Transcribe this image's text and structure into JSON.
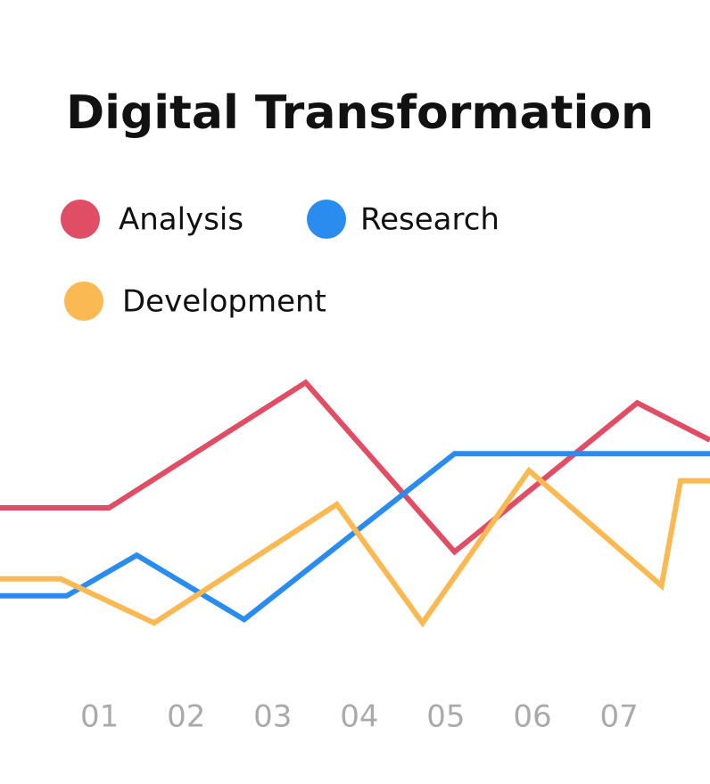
{
  "chart_data": {
    "type": "line",
    "title": "Digital Transformation",
    "xlim": [
      -0.15,
      8.05
    ],
    "ylim": [
      0,
      100
    ],
    "xticks": [
      {
        "value": 1,
        "label": "01"
      },
      {
        "value": 2,
        "label": "02"
      },
      {
        "value": 3,
        "label": "03"
      },
      {
        "value": 4,
        "label": "04"
      },
      {
        "value": 5,
        "label": "05"
      },
      {
        "value": 6,
        "label": "06"
      },
      {
        "value": 7,
        "label": "07"
      }
    ],
    "series": [
      {
        "name": "Analysis",
        "color": "#e04e66",
        "x": [
          -0.15,
          1.11,
          3.38,
          5.1,
          7.21,
          8.05
        ],
        "values": [
          50,
          50,
          87,
          37,
          81,
          70
        ]
      },
      {
        "name": "Research",
        "color": "#2b8cef",
        "x": [
          -0.15,
          0.62,
          1.43,
          2.67,
          5.1,
          8.05
        ],
        "values": [
          24,
          24,
          36,
          17,
          66,
          66
        ]
      },
      {
        "name": "Development",
        "color": "#fbb954",
        "x": [
          -0.15,
          0.55,
          1.63,
          3.74,
          4.73,
          5.96,
          7.49,
          7.71,
          8.05
        ],
        "values": [
          29,
          29,
          16,
          51,
          16,
          61,
          27,
          58,
          58
        ]
      }
    ]
  }
}
